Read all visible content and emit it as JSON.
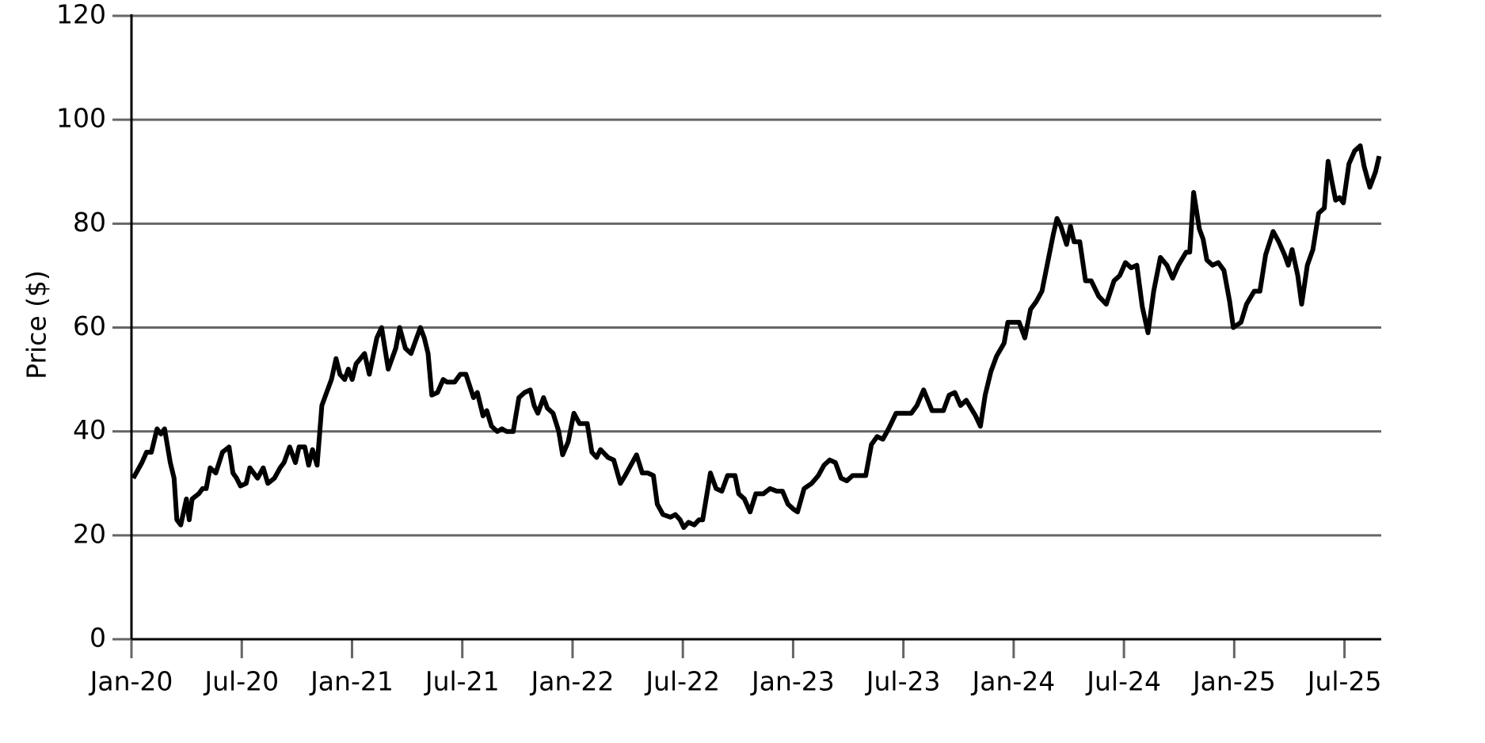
{
  "chart_data": {
    "type": "line",
    "ylabel": "Price ($)",
    "color": "#000000",
    "grid": true,
    "xlim": [
      0,
      68
    ],
    "ylim": [
      0,
      120
    ],
    "xticks": [
      {
        "value": 0,
        "label": "Jan-20"
      },
      {
        "value": 6,
        "label": "Jul-20"
      },
      {
        "value": 12,
        "label": "Jan-21"
      },
      {
        "value": 18,
        "label": "Jul-21"
      },
      {
        "value": 24,
        "label": "Jan-22"
      },
      {
        "value": 30,
        "label": "Jul-22"
      },
      {
        "value": 36,
        "label": "Jan-23"
      },
      {
        "value": 42,
        "label": "Jul-23"
      },
      {
        "value": 48,
        "label": "Jan-24"
      },
      {
        "value": 54,
        "label": "Jul-24"
      },
      {
        "value": 60,
        "label": "Jan-25"
      },
      {
        "value": 66,
        "label": "Jul-25"
      }
    ],
    "yticks": [
      0,
      20,
      40,
      60,
      80,
      100,
      120
    ],
    "x": [
      0.1,
      0.57,
      0.82,
      1.08,
      1.39,
      1.6,
      1.8,
      2.11,
      2.32,
      2.47,
      2.68,
      2.99,
      3.14,
      3.3,
      3.66,
      3.87,
      4.07,
      4.28,
      4.59,
      4.95,
      5.31,
      5.52,
      5.72,
      5.93,
      6.24,
      6.44,
      6.86,
      7.17,
      7.42,
      7.78,
      8.09,
      8.3,
      8.61,
      8.92,
      9.12,
      9.43,
      9.64,
      9.85,
      10.1,
      10.36,
      10.62,
      10.88,
      11.13,
      11.34,
      11.6,
      11.8,
      12.01,
      12.22,
      12.68,
      12.94,
      13.35,
      13.61,
      13.97,
      14.38,
      14.59,
      14.9,
      15.21,
      15.41,
      15.72,
      15.93,
      16.14,
      16.34,
      16.65,
      16.96,
      17.17,
      17.58,
      17.89,
      18.2,
      18.61,
      18.82,
      19.13,
      19.33,
      19.59,
      19.9,
      20.16,
      20.41,
      20.77,
      21.08,
      21.39,
      21.7,
      21.91,
      22.11,
      22.42,
      22.63,
      22.94,
      23.25,
      23.46,
      23.76,
      24.07,
      24.38,
      24.8,
      25.05,
      25.31,
      25.52,
      25.93,
      26.24,
      26.6,
      26.86,
      27.17,
      27.48,
      27.79,
      28.09,
      28.4,
      28.61,
      28.92,
      29.33,
      29.59,
      29.85,
      30.05,
      30.31,
      30.62,
      30.88,
      31.08,
      31.5,
      31.81,
      32.12,
      32.43,
      32.84,
      33.04,
      33.35,
      33.66,
      33.97,
      34.38,
      34.74,
      35.11,
      35.42,
      35.72,
      36.03,
      36.24,
      36.6,
      37.01,
      37.37,
      37.68,
      37.99,
      38.3,
      38.61,
      38.92,
      39.23,
      39.64,
      39.95,
      40.26,
      40.57,
      40.88,
      41.19,
      41.6,
      41.91,
      42.43,
      42.74,
      43.1,
      43.56,
      43.87,
      44.18,
      44.49,
      44.8,
      45.11,
      45.42,
      45.93,
      46.19,
      46.45,
      46.76,
      47.07,
      47.48,
      47.68,
      48.1,
      48.3,
      48.61,
      48.92,
      49.23,
      49.54,
      49.85,
      50.16,
      50.36,
      50.57,
      50.88,
      51.09,
      51.29,
      51.6,
      51.91,
      52.22,
      52.63,
      53.04,
      53.46,
      53.77,
      54.08,
      54.39,
      54.7,
      55.0,
      55.31,
      55.62,
      55.98,
      56.34,
      56.65,
      56.96,
      57.38,
      57.58,
      57.79,
      58.1,
      58.31,
      58.51,
      58.82,
      59.13,
      59.44,
      59.75,
      59.95,
      60.37,
      60.67,
      61.09,
      61.4,
      61.71,
      62.12,
      62.43,
      62.74,
      62.94,
      63.15,
      63.46,
      63.67,
      63.98,
      64.28,
      64.59,
      64.9,
      65.11,
      65.32,
      65.52,
      65.73,
      65.94,
      66.24,
      66.55,
      66.86,
      67.07,
      67.38,
      67.69,
      67.89
    ],
    "values": [
      31,
      34,
      36,
      36,
      40.5,
      39.5,
      40.5,
      34,
      31,
      23,
      22,
      27,
      23,
      27,
      28,
      29,
      29,
      33,
      32,
      36,
      37,
      32,
      31,
      29.5,
      30,
      33,
      31,
      33,
      30,
      31,
      33,
      34,
      37,
      34,
      37,
      37,
      33.5,
      36.5,
      33.5,
      45,
      47.5,
      50,
      54,
      51,
      50,
      52,
      50,
      53,
      55,
      51,
      58,
      60,
      52,
      56,
      60,
      56,
      55,
      57,
      60,
      58,
      55,
      47,
      47.5,
      50,
      49.5,
      49.5,
      51,
      51,
      46.5,
      47.5,
      43,
      44,
      41,
      40,
      40.5,
      40,
      40,
      46.5,
      47.5,
      48,
      45,
      43.5,
      46.5,
      44.5,
      43.5,
      40,
      35.5,
      38,
      43.5,
      41.5,
      41.5,
      36,
      35,
      36.5,
      35,
      34.5,
      30,
      31.5,
      33.5,
      35.5,
      32,
      32,
      31.5,
      26,
      24,
      23.5,
      24,
      23,
      21.5,
      22.5,
      22,
      23,
      23,
      32,
      29,
      28.5,
      31.5,
      31.5,
      28,
      27,
      24.5,
      28,
      28,
      29,
      28.5,
      28.5,
      26,
      25,
      24.5,
      29,
      30,
      31.5,
      33.5,
      34.5,
      34,
      31,
      30.5,
      31.5,
      31.5,
      31.5,
      37.5,
      39,
      38.5,
      40.5,
      43.5,
      43.5,
      43.5,
      45,
      48,
      44,
      44,
      44,
      47,
      47.5,
      45,
      46,
      43,
      41,
      47,
      51.5,
      54.5,
      57,
      61,
      61,
      61,
      58,
      63.5,
      65,
      67,
      72.5,
      78,
      81,
      79.5,
      76,
      79.5,
      76.5,
      76.5,
      69,
      69,
      66,
      64.5,
      69,
      70,
      72.5,
      71.5,
      72,
      64,
      59,
      67,
      73.5,
      72,
      69.5,
      72,
      74.5,
      74.5,
      86,
      79,
      77,
      73,
      72,
      72.5,
      71,
      65,
      60,
      61,
      64.5,
      67,
      67,
      74,
      78.5,
      76.5,
      74,
      72,
      75,
      70,
      64.5,
      72,
      75,
      82,
      83,
      92,
      88,
      84.5,
      85,
      84,
      91.5,
      94,
      95,
      91,
      87,
      90,
      93
    ]
  }
}
